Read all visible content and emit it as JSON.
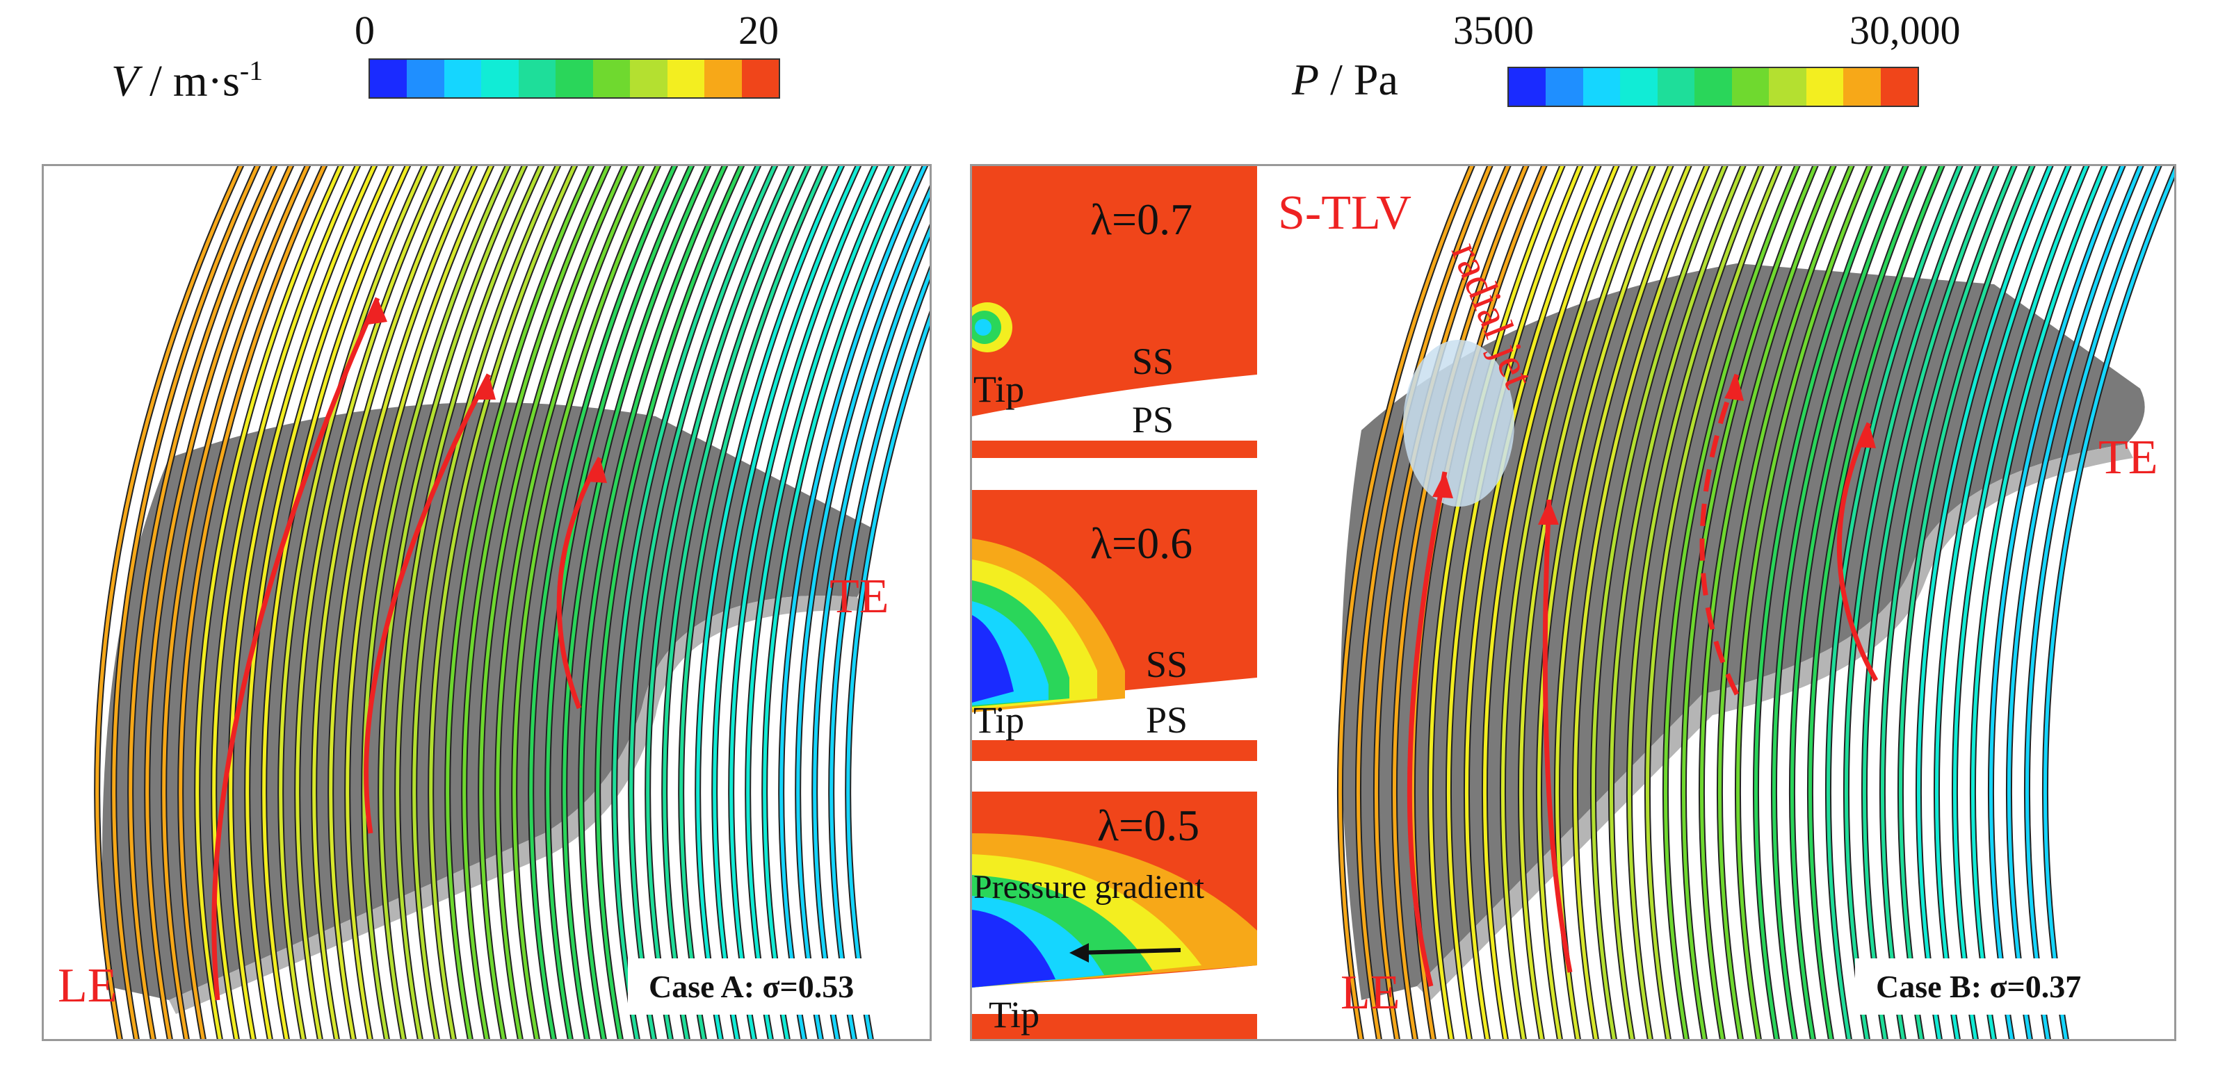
{
  "colorbars": {
    "velocity": {
      "min_label": "0",
      "max_label": "20",
      "symbol": "V",
      "unit_text": " / m·s",
      "unit_sup": "-1",
      "colors": [
        "#1a2bff",
        "#1f8fff",
        "#15d6ff",
        "#11ecd6",
        "#1ede9a",
        "#2ad65a",
        "#6fd92f",
        "#b4e030",
        "#f3ee20",
        "#f7a818",
        "#f0451a"
      ]
    },
    "pressure": {
      "min_label": "3500",
      "max_label": "30,000",
      "symbol": "P",
      "unit_text": " / Pa",
      "colors": [
        "#1a2bff",
        "#1f8fff",
        "#15d6ff",
        "#11ecd6",
        "#1ede9a",
        "#2ad65a",
        "#6fd92f",
        "#b4e030",
        "#f3ee20",
        "#f7a818",
        "#f0451a"
      ]
    }
  },
  "case_a": {
    "caption": "Case A: σ=0.53",
    "le_label": "LE",
    "te_label": "TE"
  },
  "case_b": {
    "caption": "Case B: σ=0.37",
    "le_label": "LE",
    "te_label": "TE",
    "vortex_label": "S-TLV",
    "jet_label": "radial jet"
  },
  "contours": [
    {
      "lambda": "λ=0.7",
      "ss": "SS",
      "ps": "PS",
      "tip": "Tip"
    },
    {
      "lambda": "λ=0.6",
      "ss": "SS",
      "ps": "PS",
      "tip": "Tip"
    },
    {
      "lambda": "λ=0.5",
      "gradient": "Pressure gradient",
      "tip": "Tip"
    }
  ]
}
